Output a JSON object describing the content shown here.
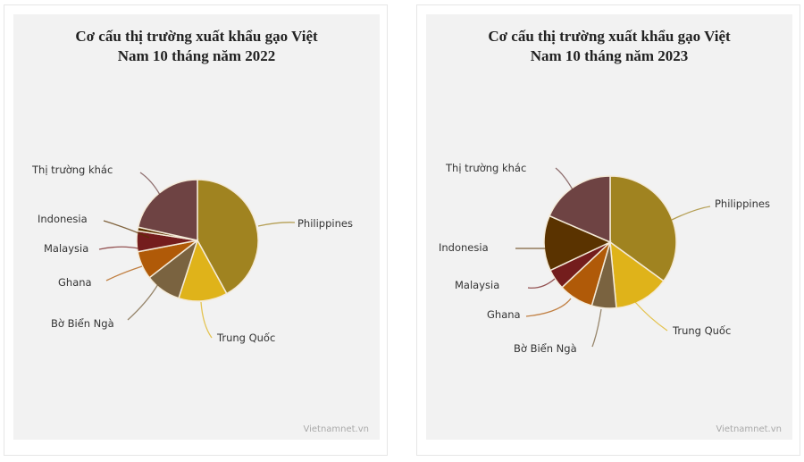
{
  "charts": [
    {
      "title_line1": "Cơ cấu thị trường xuất khẩu gạo Việt",
      "title_line2": "Nam 10 tháng năm 2022",
      "credit": "Vietnamnet.vn"
    },
    {
      "title_line1": "Cơ cấu thị trường xuất khẩu gạo Việt",
      "title_line2": "Nam 10 tháng năm 2023",
      "credit": "Vietnamnet.vn"
    }
  ],
  "colors": {
    "Philippines": "#a08320",
    "Trung Quốc": "#dfb31a",
    "Bờ Biển Ngà": "#7a6340",
    "Ghana": "#b05a08",
    "Malaysia": "#741d1d",
    "Indonesia": "#5a3300",
    "Thị trường khác": "#6e4343"
  },
  "chart_data": [
    {
      "type": "pie",
      "title": "Cơ cấu thị trường xuất khẩu gạo Việt Nam 10 tháng năm 2022",
      "categories": [
        "Philippines",
        "Trung Quốc",
        "Bờ Biển Ngà",
        "Ghana",
        "Malaysia",
        "Indonesia",
        "Thị trường khác"
      ],
      "values": [
        42,
        13,
        9.5,
        7.5,
        5.5,
        1,
        21.5
      ],
      "unit": "% (estimated from slice angles)",
      "legend": "none (leader-line labels)",
      "source": "Vietnamnet.vn"
    },
    {
      "type": "pie",
      "title": "Cơ cấu thị trường xuất khẩu gạo Việt Nam 10 tháng năm 2023",
      "categories": [
        "Philippines",
        "Trung Quốc",
        "Bờ Biển Ngà",
        "Ghana",
        "Malaysia",
        "Indonesia",
        "Thị trường khác"
      ],
      "values": [
        35,
        13.5,
        6,
        8.5,
        5,
        13.5,
        18.5
      ],
      "unit": "% (estimated from slice angles)",
      "legend": "none (leader-line labels)",
      "source": "Vietnamnet.vn"
    }
  ]
}
